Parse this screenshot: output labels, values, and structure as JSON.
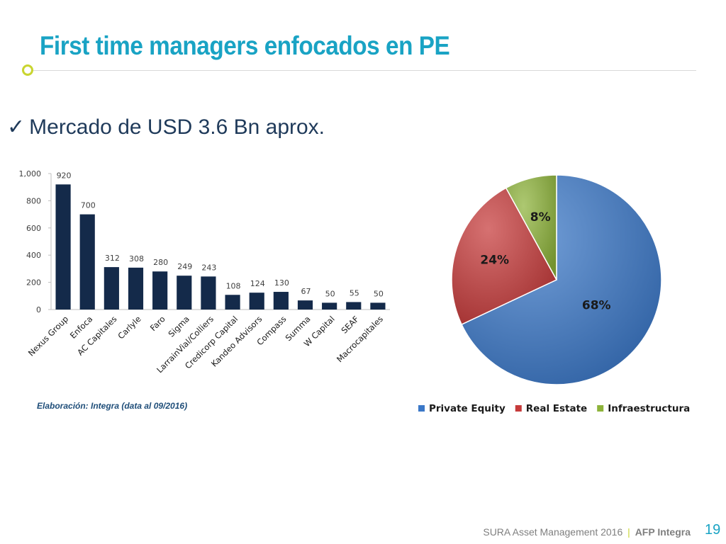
{
  "slide": {
    "title": "First time managers enfocados en PE",
    "subtitle": "Mercado de USD 3.6 Bn aprox.",
    "source_note": "Elaboración: Integra (data al 09/2016)",
    "footer_company": "SURA Asset Management 2016",
    "footer_separator": "|",
    "footer_brand": "AFP Integra",
    "page_number": "19"
  },
  "chart_data": [
    {
      "type": "bar",
      "categories": [
        "Nexus Group",
        "Enfoca",
        "AC Capitales",
        "Carlyle",
        "Faro",
        "Sigma",
        "LarrainVial/Colliers",
        "Credicorp Capital",
        "Kandeo Advisors",
        "Compass",
        "Summa",
        "W Capital",
        "SEAF",
        "Macrocapitales"
      ],
      "values": [
        920,
        700,
        312,
        308,
        280,
        249,
        243,
        108,
        124,
        130,
        67,
        50,
        55,
        50
      ],
      "value_labels": [
        "920",
        "700",
        "312",
        "308",
        "280",
        "249",
        "243",
        "108",
        "124",
        "130",
        "67",
        "50",
        "55",
        "50"
      ],
      "ylim": [
        0,
        1000
      ],
      "yticks": [
        0,
        200,
        400,
        600,
        800,
        1000
      ],
      "ytick_labels": [
        "0",
        "200",
        "400",
        "600",
        "800",
        "1,000"
      ],
      "grid": false,
      "color": "#142a4a"
    },
    {
      "type": "pie",
      "labels": [
        "Private Equity",
        "Real Estate",
        "Infraestructura"
      ],
      "values": [
        68,
        24,
        8
      ],
      "value_labels": [
        "68%",
        "24%",
        "8%"
      ],
      "colors": [
        "#3b78c8",
        "#c63a3a",
        "#8db33a"
      ],
      "legend": "bottom"
    }
  ]
}
